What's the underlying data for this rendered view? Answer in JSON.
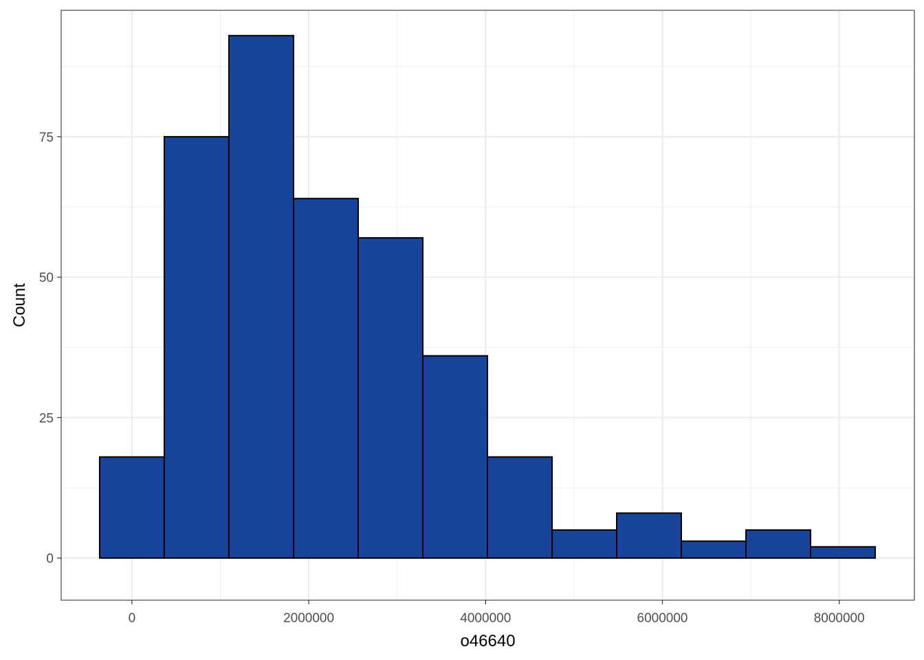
{
  "chart_data": {
    "type": "histogram",
    "xlabel": "o46640",
    "ylabel": "Count",
    "bin_width": 731000,
    "bins": [
      {
        "x0": -365000,
        "x1": 366000,
        "count": 18
      },
      {
        "x0": 366000,
        "x1": 1097000,
        "count": 75
      },
      {
        "x0": 1097000,
        "x1": 1828000,
        "count": 93
      },
      {
        "x0": 1828000,
        "x1": 2559000,
        "count": 64
      },
      {
        "x0": 2559000,
        "x1": 3290000,
        "count": 57
      },
      {
        "x0": 3290000,
        "x1": 4021000,
        "count": 36
      },
      {
        "x0": 4021000,
        "x1": 4752000,
        "count": 18
      },
      {
        "x0": 4752000,
        "x1": 5483000,
        "count": 5
      },
      {
        "x0": 5483000,
        "x1": 6214000,
        "count": 8
      },
      {
        "x0": 6214000,
        "x1": 6945000,
        "count": 3
      },
      {
        "x0": 6945000,
        "x1": 7676000,
        "count": 5
      },
      {
        "x0": 7676000,
        "x1": 8407000,
        "count": 2
      }
    ],
    "x_ticks": [
      0,
      2000000,
      4000000,
      6000000,
      8000000
    ],
    "x_tick_labels": [
      "0",
      "2000000",
      "4000000",
      "6000000",
      "8000000"
    ],
    "y_ticks": [
      0,
      25,
      50,
      75
    ],
    "y_tick_labels": [
      "0",
      "25",
      "50",
      "75"
    ],
    "xlim": [
      -800000,
      8850000
    ],
    "ylim": [
      -7.5,
      97.5
    ],
    "grid": true,
    "bar_fill": "#18449a",
    "bar_stroke": "#000000",
    "grid_color": "#ebebeb",
    "panel_border": "#333333"
  }
}
